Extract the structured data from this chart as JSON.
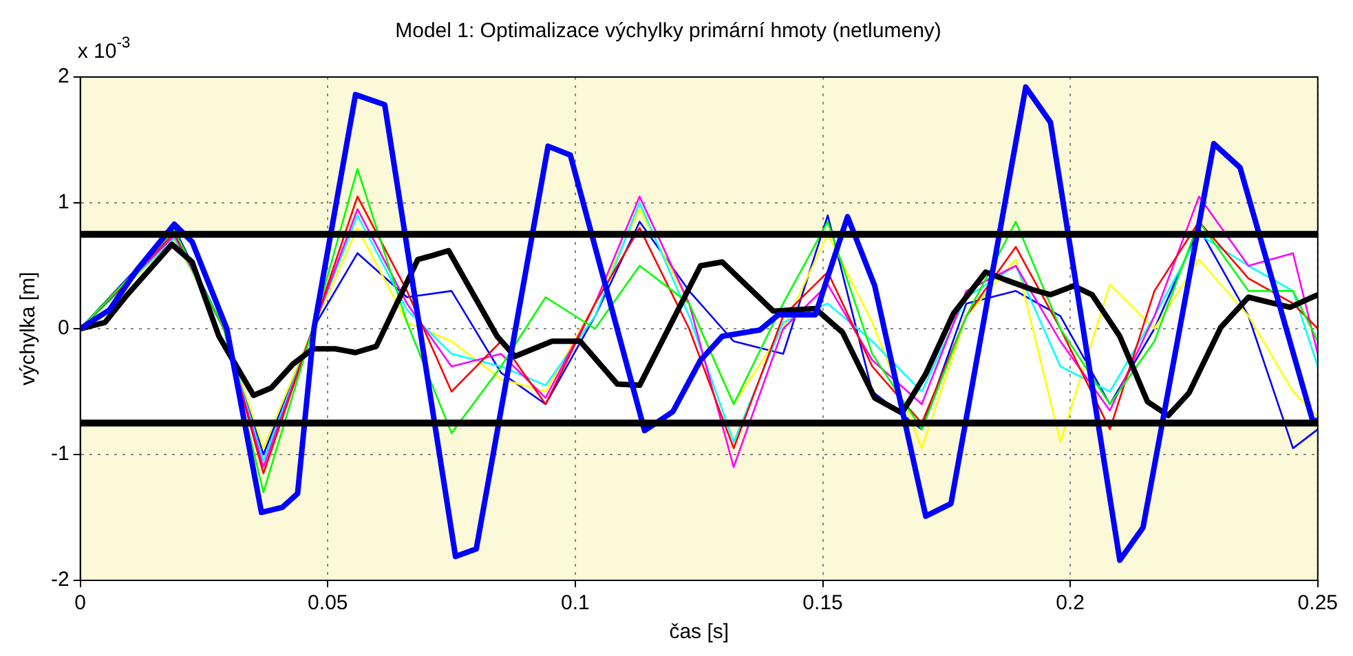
{
  "chart_data": {
    "type": "line",
    "title": "Model 1: Optimalizace výchylky primární hmoty (netlumeny)",
    "xlabel": "čas [s]",
    "ylabel": "výchylka [m]",
    "annotations": [
      "x 10$^{-3}$"
    ],
    "x": [
      0,
      0.019,
      0.029,
      0.037,
      0.047,
      0.056,
      0.066,
      0.075,
      0.085,
      0.094,
      0.104,
      0.113,
      0.123,
      0.132,
      0.142,
      0.151,
      0.16,
      0.17,
      0.179,
      0.189,
      0.198,
      0.208,
      0.217,
      0.226,
      0.236,
      0.245,
      0.25
    ],
    "series": [
      {
        "color": "#00ff00",
        "values": [
          0,
          0.78,
          0,
          -1.3,
          0,
          1.27,
          0.05,
          -0.83,
          -0.3,
          0.25,
          0,
          0.5,
          0.2,
          -0.6,
          0.2,
          0.85,
          -0.2,
          -0.8,
          0.1,
          0.85,
          0,
          -0.6,
          -0.1,
          0.85,
          0.3,
          0.3,
          -0.1
        ]
      },
      {
        "color": "#ff0000",
        "values": [
          0,
          0.76,
          0,
          -1.15,
          0,
          1.05,
          0.3,
          -0.5,
          -0.1,
          -0.6,
          0.2,
          0.8,
          0,
          -0.95,
          0.1,
          0.45,
          -0.3,
          -0.75,
          0.1,
          0.65,
          0,
          -0.8,
          0.3,
          0.85,
          0.4,
          0.2,
          0
        ]
      },
      {
        "color": "#ff00ff",
        "values": [
          0,
          0.74,
          0,
          -1.1,
          0,
          0.95,
          0.2,
          -0.3,
          -0.2,
          -0.55,
          0.2,
          1.05,
          0.2,
          -1.1,
          0,
          0.35,
          -0.25,
          -0.6,
          0.3,
          0.5,
          -0.1,
          -0.65,
          0.1,
          1.05,
          0.5,
          0.6,
          -0.2
        ]
      },
      {
        "color": "#00ffff",
        "values": [
          0,
          0.72,
          0,
          -1.05,
          0,
          0.9,
          0.15,
          -0.2,
          -0.3,
          -0.45,
          0.1,
          1.0,
          0.1,
          -0.9,
          0.05,
          0.2,
          -0.1,
          -0.5,
          0.25,
          0.5,
          -0.3,
          -0.5,
          0.1,
          0.75,
          0.5,
          0.3,
          -0.3
        ]
      },
      {
        "color": "#ffff00",
        "values": [
          0,
          0.7,
          0,
          -0.95,
          0,
          0.8,
          0.05,
          -0.1,
          -0.4,
          -0.5,
          0.2,
          0.95,
          0.2,
          -0.6,
          0,
          0.75,
          0.05,
          -0.95,
          0.1,
          0.55,
          -0.9,
          0.35,
          0,
          0.55,
          0.1,
          -0.5,
          -0.7
        ]
      },
      {
        "color": "#0000ff",
        "values": [
          0,
          0.8,
          0,
          -1.0,
          0,
          0.6,
          0.25,
          0.3,
          -0.35,
          -0.6,
          0.1,
          0.85,
          0.3,
          -0.1,
          -0.2,
          0.9,
          -0.5,
          -0.8,
          0.2,
          0.3,
          0.1,
          -0.6,
          0,
          0.8,
          0.1,
          -0.95,
          -0.8
        ]
      },
      {
        "color": "#0000ff",
        "x": [
          0,
          0.0059,
          0.0115,
          0.019,
          0.0226,
          0.0296,
          0.0366,
          0.0408,
          0.0439,
          0.0472,
          0.0556,
          0.0615,
          0.0758,
          0.08,
          0.0945,
          0.099,
          0.114,
          0.1197,
          0.1253,
          0.1297,
          0.1373,
          0.141,
          0.1485,
          0.155,
          0.1605,
          0.1708,
          0.1759,
          0.191,
          0.196,
          0.21,
          0.2147,
          0.229,
          0.2343,
          0.2491,
          0.25
        ],
        "values": [
          0,
          0.15,
          0.47,
          0.83,
          0.69,
          0,
          -1.46,
          -1.42,
          -1.31,
          0,
          1.86,
          1.78,
          -1.81,
          -1.75,
          1.45,
          1.38,
          -0.81,
          -0.66,
          -0.25,
          -0.06,
          -0.01,
          0.11,
          0.11,
          0.89,
          0.34,
          -1.49,
          -1.39,
          1.92,
          1.64,
          -1.84,
          -1.58,
          1.47,
          1.28,
          -0.75,
          -0.72
        ]
      },
      {
        "color": "#000000",
        "x": [
          0,
          0.005,
          0.0095,
          0.0185,
          0.0226,
          0.028,
          0.035,
          0.0386,
          0.043,
          0.047,
          0.0515,
          0.0556,
          0.0598,
          0.0682,
          0.071,
          0.0744,
          0.0842,
          0.0878,
          0.0953,
          0.101,
          0.1085,
          0.113,
          0.1253,
          0.1297,
          0.14,
          0.1485,
          0.154,
          0.1605,
          0.166,
          0.1708,
          0.1764,
          0.1829,
          0.1868,
          0.1924,
          0.196,
          0.2007,
          0.2044,
          0.21,
          0.2156,
          0.2198,
          0.224,
          0.2304,
          0.236,
          0.2444,
          0.25
        ],
        "values": [
          0,
          0.05,
          0.27,
          0.67,
          0.53,
          -0.06,
          -0.53,
          -0.47,
          -0.28,
          -0.16,
          -0.16,
          -0.19,
          -0.14,
          0.55,
          0.58,
          0.62,
          -0.06,
          -0.22,
          -0.1,
          -0.1,
          -0.44,
          -0.45,
          0.5,
          0.53,
          0.14,
          0.16,
          -0.03,
          -0.55,
          -0.67,
          -0.36,
          0.12,
          0.45,
          0.39,
          0.31,
          0.27,
          0.34,
          0.27,
          -0.06,
          -0.58,
          -0.69,
          -0.51,
          0.01,
          0.25,
          0.17,
          0.27
        ]
      }
    ],
    "ref_lines": [
      {
        "axis": "y",
        "value": 0.75,
        "color": "#000000"
      },
      {
        "axis": "y",
        "value": -0.75,
        "color": "#000000"
      }
    ],
    "bands": [
      {
        "axis": "y",
        "from": -0.75,
        "to": 0.75,
        "color": "#ffffff"
      }
    ],
    "xlim": [
      0,
      0.25
    ],
    "xticks": [
      0,
      0.05,
      0.1,
      0.15,
      0.2,
      0.25
    ],
    "ylim": [
      -2,
      2
    ],
    "yticks": [
      -2,
      -1,
      0,
      1,
      2
    ],
    "grid": true,
    "legend": false,
    "line_style": "solid",
    "marker": "none"
  }
}
